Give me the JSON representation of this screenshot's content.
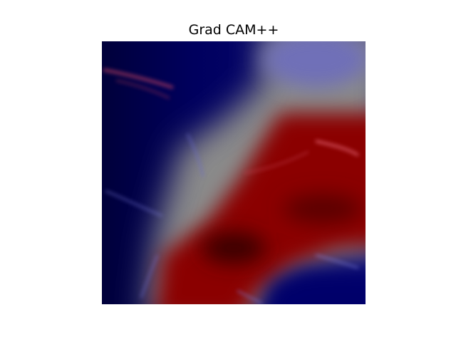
{
  "title": "Grad CAM++",
  "heatmap": {
    "colors": {
      "cold": "#00005a",
      "neutral": "#8a8a8a",
      "hot": "#8b0000",
      "peak": "#3a0000",
      "texture_red": "#e05060",
      "texture_blue": "#7a7ae8"
    }
  }
}
